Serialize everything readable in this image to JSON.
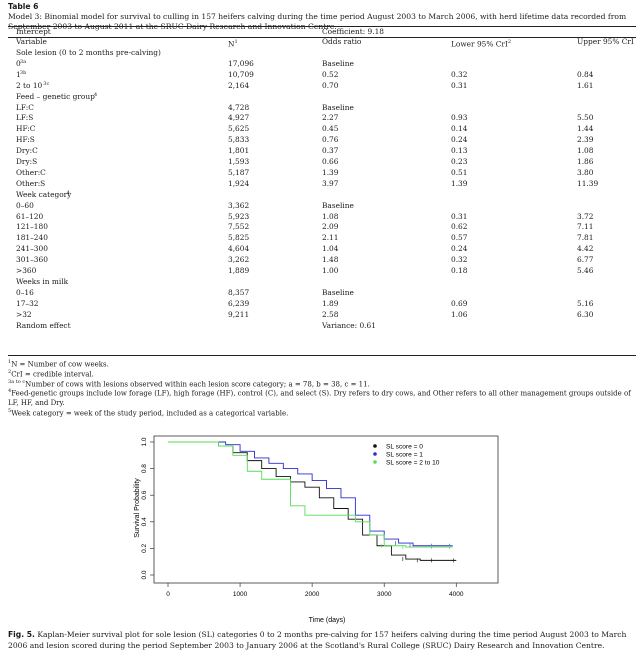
{
  "table": {
    "label": "Table 6",
    "caption": "Model 3: Binomial model for survival to culling in 157 heifers calving during the time period August 2003 to March 2006, with herd lifetime data recorded from September 2003 to August 2011 at the SRUC Dairy Research and Innovation Centre.",
    "intercept": {
      "label": "Intercept",
      "coefficient": "Coefficient: 9.18"
    },
    "headers": {
      "variable": "Variable",
      "n": "N",
      "n_sup": "1",
      "or": "Odds ratio",
      "lower": "Lower 95% CrI",
      "lower_sup": "2",
      "upper": "Upper 95% CrI"
    },
    "rows": [
      {
        "v": "Sole lesion (0 to 2 months pre-calving)",
        "n": "",
        "or": "",
        "lo": "",
        "up": "",
        "sec": true
      },
      {
        "v": "0",
        "sup": "3a",
        "n": "17,096",
        "or": "Baseline",
        "lo": "",
        "up": ""
      },
      {
        "v": "1",
        "sup": "3b",
        "n": "10,709",
        "or": "0.52",
        "lo": "0.32",
        "up": "0.84"
      },
      {
        "v": "2 to 10",
        "sup": "3c",
        "n": "2,164",
        "or": "0.70",
        "lo": "0.31",
        "up": "1.61"
      },
      {
        "v": "Feed – genetic group",
        "sup": "4",
        "n": "",
        "or": "",
        "lo": "",
        "up": "",
        "sec": true
      },
      {
        "v": "LF:C",
        "n": "4,728",
        "or": "Baseline",
        "lo": "",
        "up": ""
      },
      {
        "v": "LF:S",
        "n": "4,927",
        "or": "2.27",
        "lo": "0.93",
        "up": "5.50"
      },
      {
        "v": "HF:C",
        "n": "5,625",
        "or": "0.45",
        "lo": "0.14",
        "up": "1.44"
      },
      {
        "v": "HF:S",
        "n": "5,833",
        "or": "0.76",
        "lo": "0.24",
        "up": "2.39"
      },
      {
        "v": "Dry:C",
        "n": "1,801",
        "or": "0.37",
        "lo": "0.13",
        "up": "1.08"
      },
      {
        "v": "Dry:S",
        "n": "1,593",
        "or": "0.66",
        "lo": "0.23",
        "up": "1.86"
      },
      {
        "v": "Other:C",
        "n": "5,187",
        "or": "1.39",
        "lo": "0.51",
        "up": "3.80"
      },
      {
        "v": "Other:S",
        "n": "1,924",
        "or": "3.97",
        "lo": "1.39",
        "up": "11.39"
      },
      {
        "v": "Week category",
        "sup": "4",
        "n": "",
        "or": "",
        "lo": "",
        "up": "",
        "sec": true
      },
      {
        "v": "0–60",
        "n": "3,362",
        "or": "Baseline",
        "lo": "",
        "up": ""
      },
      {
        "v": "61–120",
        "n": "5,923",
        "or": "1.08",
        "lo": "0.31",
        "up": "3.72"
      },
      {
        "v": "121–180",
        "n": "7,552",
        "or": "2.09",
        "lo": "0.62",
        "up": "7.11"
      },
      {
        "v": "181–240",
        "n": "5,825",
        "or": "2.11",
        "lo": "0.57",
        "up": "7.81"
      },
      {
        "v": "241–300",
        "n": "4,604",
        "or": "1.04",
        "lo": "0.24",
        "up": "4.42"
      },
      {
        "v": "301–360",
        "n": "3,262",
        "or": "1.48",
        "lo": "0.32",
        "up": "6.77"
      },
      {
        "v": ">360",
        "n": "1,889",
        "or": "1.00",
        "lo": "0.18",
        "up": "5.46"
      },
      {
        "v": "Weeks in milk",
        "n": "",
        "or": "",
        "lo": "",
        "up": "",
        "sec": true
      },
      {
        "v": "0–16",
        "n": "8,357",
        "or": "Baseline",
        "lo": "",
        "up": ""
      },
      {
        "v": "17–32",
        "n": "6,239",
        "or": "1.89",
        "lo": "0.69",
        "up": "5.16"
      },
      {
        "v": ">32",
        "n": "9,211",
        "or": "2.58",
        "lo": "1.06",
        "up": "6.30"
      },
      {
        "v": "Random effect",
        "n": "",
        "or": "Variance: 0.61",
        "lo": "",
        "up": ""
      }
    ],
    "footnotes": [
      {
        "sup": "1",
        "text": "N = Number of cow weeks."
      },
      {
        "sup": "2",
        "text": "CrI = credible interval."
      },
      {
        "sup": "3a to c",
        "text": "Number of cows with lesions observed within each lesion score category; a = 78, b = 38, c = 11."
      },
      {
        "sup": "4",
        "text": "Feed-genetic groups include low forage (LF), high forage (HF), control (C), and select (S). Dry refers to dry cows, and Other refers to all other management groups outside of LF, HF, and Dry."
      },
      {
        "sup": "5",
        "text": "Week category = week of the study period, included as a categorical variable."
      }
    ]
  },
  "figure": {
    "caption_label": "Fig. 5.",
    "caption_text": "Kaplan-Meier survival plot for sole lesion (SL) categories 0 to 2 months pre-calving for 157 heifers calving during the time period August 2003 to March 2006 and lesion scored during the period September 2003 to January 2006 at the Scotland's Rural College (SRUC) Dairy Research and Innovation Centre."
  },
  "chart_data": {
    "type": "line",
    "xlabel": "Time (days)",
    "ylabel": "Survival Probability",
    "xlim": [
      0,
      4200
    ],
    "ylim": [
      0,
      1
    ],
    "xticks": [
      "0",
      "1000",
      "2000",
      "3000",
      "4000"
    ],
    "yticks": [
      "0.0",
      "0.2",
      "0.4",
      "0.6",
      "0.8",
      "1.0"
    ],
    "legend_position": "top-right",
    "series": [
      {
        "name": "SL score = 0",
        "color": "#111111",
        "x": [
          0,
          700,
          900,
          1100,
          1300,
          1500,
          1700,
          1900,
          2100,
          2300,
          2500,
          2700,
          2900,
          3100,
          3300,
          3500,
          3700,
          4000
        ],
        "y": [
          1.0,
          0.97,
          0.92,
          0.86,
          0.8,
          0.74,
          0.7,
          0.66,
          0.58,
          0.5,
          0.42,
          0.3,
          0.22,
          0.15,
          0.12,
          0.11,
          0.11,
          0.11
        ]
      },
      {
        "name": "SL score = 1",
        "color": "#2b2bd0",
        "x": [
          0,
          800,
          1000,
          1200,
          1400,
          1600,
          1800,
          2000,
          2200,
          2400,
          2600,
          2800,
          3000,
          3200,
          3400,
          3700,
          3950
        ],
        "y": [
          1.0,
          0.98,
          0.93,
          0.88,
          0.84,
          0.8,
          0.76,
          0.71,
          0.65,
          0.58,
          0.45,
          0.33,
          0.27,
          0.24,
          0.22,
          0.22,
          0.22
        ]
      },
      {
        "name": "SL score = 2 to 10",
        "color": "#55dd55",
        "x": [
          0,
          700,
          900,
          1100,
          1300,
          1500,
          1700,
          1900,
          2000,
          2200,
          2400,
          2600,
          2800,
          3000,
          3300,
          3700,
          3950
        ],
        "y": [
          1.0,
          0.97,
          0.9,
          0.78,
          0.72,
          0.72,
          0.52,
          0.45,
          0.45,
          0.45,
          0.45,
          0.4,
          0.3,
          0.22,
          0.21,
          0.21,
          0.21
        ]
      }
    ]
  }
}
